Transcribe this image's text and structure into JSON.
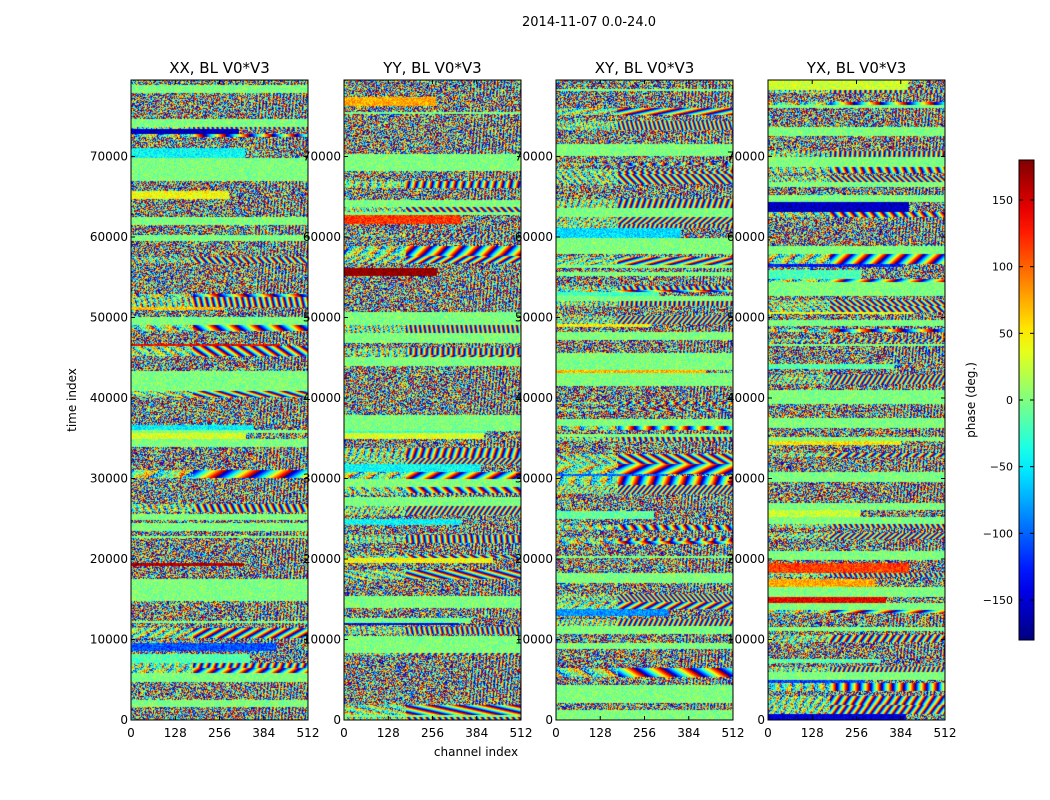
{
  "chart_data": {
    "type": "heatmap",
    "title": "2014-11-07 0.0-24.0",
    "xlabel": "channel index",
    "ylabel": "time index",
    "xlim": [
      0,
      512
    ],
    "ylim": [
      0,
      79500
    ],
    "x_ticks": [
      0,
      128,
      256,
      384,
      512
    ],
    "x_tick_labels": [
      "0",
      "128",
      "256",
      "384",
      "512"
    ],
    "y_ticks": [
      0,
      10000,
      20000,
      30000,
      40000,
      50000,
      60000,
      70000
    ],
    "y_tick_labels": [
      "0",
      "10000",
      "20000",
      "30000",
      "40000",
      "50000",
      "60000",
      "70000"
    ],
    "panels": [
      {
        "id": "xx",
        "title": "XX, BL V0*V3",
        "seed": 11
      },
      {
        "id": "yy",
        "title": "YY, BL V0*V3",
        "seed": 23
      },
      {
        "id": "xy",
        "title": "XY, BL V0*V3",
        "seed": 37
      },
      {
        "id": "yx",
        "title": "YX, BL V0*V3",
        "seed": 53
      }
    ],
    "colorbar": {
      "label": "phase (deg.)",
      "range": [
        -180,
        180
      ],
      "colormap": "jet",
      "ticks": [
        -150,
        -100,
        -50,
        0,
        50,
        100,
        150
      ],
      "tick_labels": [
        "−150",
        "−100",
        "−50",
        "0",
        "50",
        "100",
        "150"
      ]
    }
  }
}
